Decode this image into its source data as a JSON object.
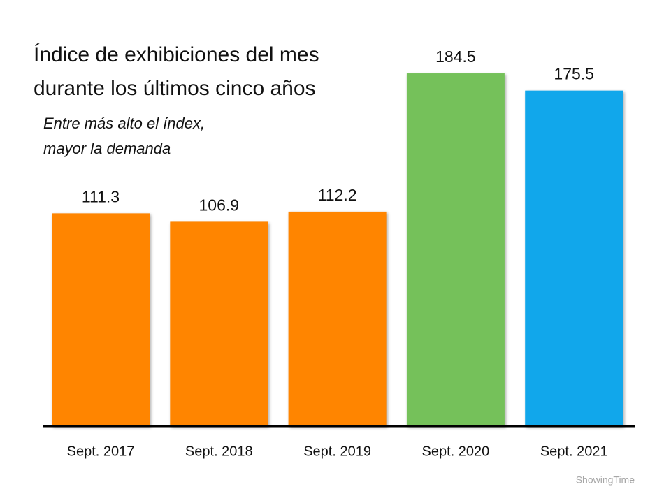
{
  "chart_data": {
    "type": "bar",
    "title": [
      "Índice de exhibiciones del mes",
      "durante los últimos cinco años"
    ],
    "subtitle": [
      "Entre más alto el índex,",
      "mayor la demanda"
    ],
    "categories": [
      "Sept. 2017",
      "Sept. 2018",
      "Sept. 2019",
      "Sept. 2020",
      "Sept. 2021"
    ],
    "values": [
      111.3,
      106.9,
      112.2,
      184.5,
      175.5
    ],
    "colors": [
      "#ff8500",
      "#ff8500",
      "#ff8500",
      "#75c15a",
      "#11a7eb"
    ],
    "source": "ShowingTime"
  }
}
